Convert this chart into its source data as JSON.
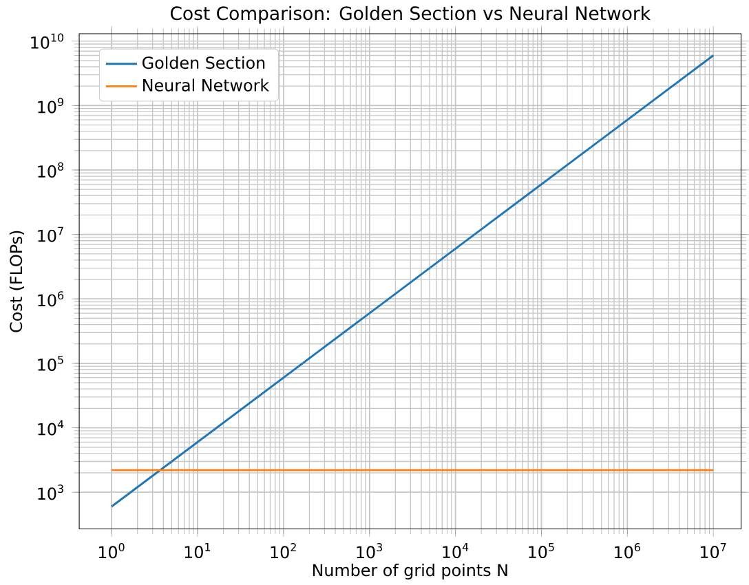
{
  "chart_data": {
    "type": "line",
    "title": "Cost Comparison: Golden Section vs Neural Network",
    "xlabel": "Number of grid points N",
    "ylabel": "Cost (FLOPs)",
    "log": "xy",
    "grid": true,
    "legend": "top left",
    "x": [
      1,
      10,
      100,
      1000,
      10000,
      100000,
      1000000,
      10000000
    ],
    "series": [
      {
        "name": "Golden Section",
        "color": "#1f77b4",
        "values": [
          600,
          6000,
          60000,
          600000,
          6000000,
          60000000,
          600000000,
          6000000000
        ]
      },
      {
        "name": "Neural Network",
        "color": "#ff7f0e",
        "values": [
          2200,
          2200,
          2200,
          2200,
          2200,
          2200,
          2200,
          2200
        ]
      }
    ],
    "xlim": [
      0.42,
      21000000
    ],
    "ylim": [
      270,
      13000000000
    ],
    "xticks": [
      {
        "value": 1,
        "label": "10$^{0}$"
      },
      {
        "value": 10,
        "label": "10$^{1}$"
      },
      {
        "value": 100,
        "label": "10$^{2}$"
      },
      {
        "value": 1000,
        "label": "10$^{3}$"
      },
      {
        "value": 10000,
        "label": "10$^{4}$"
      },
      {
        "value": 100000,
        "label": "10$^{5}$"
      },
      {
        "value": 1000000,
        "label": "10$^{6}$"
      },
      {
        "value": 10000000,
        "label": "10$^{7}$"
      }
    ],
    "yticks": [
      {
        "value": 1000,
        "label": "10$^{3}$"
      },
      {
        "value": 10000,
        "label": "10$^{4}$"
      },
      {
        "value": 100000,
        "label": "10$^{5}$"
      },
      {
        "value": 1000000,
        "label": "10$^{6}$"
      },
      {
        "value": 10000000,
        "label": "10$^{7}$"
      },
      {
        "value": 100000000,
        "label": "10$^{8}$"
      },
      {
        "value": 1000000000,
        "label": "10$^{9}$"
      },
      {
        "value": 10000000000,
        "label": "10$^{10}$"
      }
    ]
  }
}
